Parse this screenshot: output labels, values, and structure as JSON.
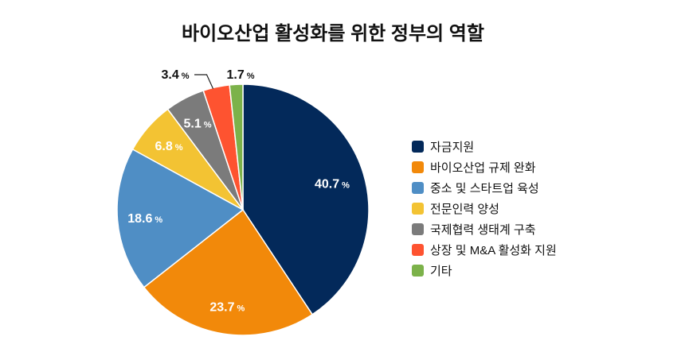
{
  "chart_data": {
    "type": "pie",
    "title": "바이오산업 활성화를 위한 정부의 역할",
    "unit": "%",
    "start": "top",
    "direction": "clockwise",
    "legend_position": "right",
    "slices": [
      {
        "label": "자금지원",
        "value": 40.7,
        "value_text": "40.7",
        "color": "#03295a",
        "text_color": "#ffffff"
      },
      {
        "label": "바이오산업 규제 완화",
        "value": 23.7,
        "value_text": "23.7",
        "color": "#f2890a",
        "text_color": "#ffffff"
      },
      {
        "label": "중소 및 스타트업 육성",
        "value": 18.6,
        "value_text": "18.6",
        "color": "#4f8ec5",
        "text_color": "#ffffff"
      },
      {
        "label": "전문인력 양성",
        "value": 6.8,
        "value_text": "6.8",
        "color": "#f3c333",
        "text_color": "#ffffff"
      },
      {
        "label": "국제협력 생태계 구축",
        "value": 5.1,
        "value_text": "5.1",
        "color": "#7b7b7b",
        "text_color": "#ffffff"
      },
      {
        "label": "상장 및 M&A 활성화 지원",
        "value": 3.4,
        "value_text": "3.4",
        "color": "#fe5330",
        "text_color": "#111111"
      },
      {
        "label": "기타",
        "value": 1.7,
        "value_text": "1.7",
        "color": "#7cb24a",
        "text_color": "#111111"
      }
    ]
  }
}
